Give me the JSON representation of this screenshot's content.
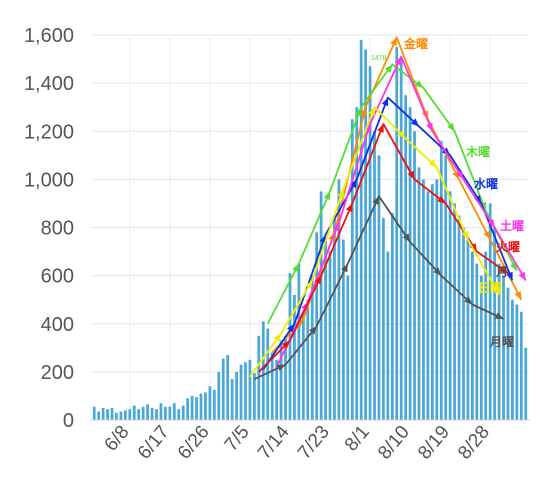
{
  "chart_data": {
    "type": "bar",
    "title": "",
    "xlabel": "",
    "ylabel": "",
    "ylim": [
      0,
      1600
    ],
    "yticks": [
      "0",
      "200",
      "400",
      "600",
      "800",
      "1,000",
      "1,200",
      "1,400",
      "1,600"
    ],
    "ytick_values": [
      0,
      200,
      400,
      600,
      800,
      1000,
      1200,
      1400,
      1600
    ],
    "xtick_labels": [
      "6/8",
      "6/17",
      "6/26",
      "7/5",
      "7/14",
      "7/23",
      "8/1",
      "8/10",
      "8/19",
      "8/28"
    ],
    "xtick_index": [
      8,
      17,
      26,
      35,
      44,
      53,
      62,
      71,
      80,
      89
    ],
    "grid": true,
    "bar_color": "#4aa8d8",
    "categories": [
      "5/31",
      "6/1",
      "6/2",
      "6/3",
      "6/4",
      "6/5",
      "6/6",
      "6/7",
      "6/8",
      "6/9",
      "6/10",
      "6/11",
      "6/12",
      "6/13",
      "6/14",
      "6/15",
      "6/16",
      "6/17",
      "6/18",
      "6/19",
      "6/20",
      "6/21",
      "6/22",
      "6/23",
      "6/24",
      "6/25",
      "6/26",
      "6/27",
      "6/28",
      "6/29",
      "6/30",
      "7/1",
      "7/2",
      "7/3",
      "7/4",
      "7/5",
      "7/6",
      "7/7",
      "7/8",
      "7/9",
      "7/10",
      "7/11",
      "7/12",
      "7/13",
      "7/14",
      "7/15",
      "7/16",
      "7/17",
      "7/18",
      "7/19",
      "7/20",
      "7/21",
      "7/22",
      "7/23",
      "7/24",
      "7/25",
      "7/26",
      "7/27",
      "7/28",
      "7/29",
      "7/30",
      "7/31",
      "8/1",
      "8/2",
      "8/3",
      "8/4",
      "8/5",
      "8/6",
      "8/7",
      "8/8",
      "8/9",
      "8/10",
      "8/11",
      "8/12",
      "8/13",
      "8/14",
      "8/15",
      "8/16",
      "8/17",
      "8/18",
      "8/19",
      "8/20",
      "8/21",
      "8/22",
      "8/23",
      "8/24",
      "8/25",
      "8/26",
      "8/27",
      "8/28",
      "8/29",
      "8/30",
      "8/31",
      "9/1",
      "9/2",
      "9/3",
      "9/4",
      "9/5"
    ],
    "values": [
      55,
      35,
      50,
      45,
      50,
      30,
      35,
      40,
      45,
      60,
      45,
      55,
      65,
      50,
      45,
      70,
      55,
      55,
      70,
      45,
      60,
      90,
      100,
      95,
      110,
      115,
      140,
      125,
      200,
      255,
      270,
      170,
      200,
      230,
      240,
      250,
      195,
      350,
      410,
      380,
      280,
      250,
      330,
      350,
      610,
      520,
      650,
      450,
      500,
      600,
      780,
      950,
      760,
      700,
      850,
      1000,
      750,
      600,
      1250,
      1300,
      1580,
      1540,
      1470,
      1200,
      1100,
      840,
      700,
      860,
      1550,
      1500,
      1350,
      1300,
      1200,
      1050,
      1000,
      950,
      980,
      1000,
      1160,
      1100,
      950,
      900,
      850,
      800,
      750,
      700,
      650,
      600,
      700,
      900,
      800,
      650,
      600,
      550,
      500,
      480,
      450,
      300
    ],
    "series": [
      {
        "name": "金曜",
        "color": "#ff8c00",
        "x": [
          "7/10",
          "7/17",
          "7/24",
          "7/31",
          "8/7",
          "8/14",
          "8/21",
          "8/28",
          "9/4"
        ],
        "values": [
          280,
          420,
          780,
          1300,
          1590,
          1250,
          1000,
          750,
          500
        ]
      },
      {
        "name": "木曜",
        "color": "#55dd33",
        "x": [
          "7/9",
          "7/16",
          "7/23",
          "7/30",
          "8/6",
          "8/13",
          "8/20",
          "8/27",
          "9/3"
        ],
        "values": [
          400,
          650,
          950,
          1300,
          1478,
          1380,
          1200,
          870,
          620
        ]
      },
      {
        "name": "水曜",
        "color": "#1133dd",
        "x": [
          "7/8",
          "7/15",
          "7/22",
          "7/29",
          "8/5",
          "8/12",
          "8/19",
          "8/26",
          "9/2"
        ],
        "values": [
          210,
          400,
          770,
          1000,
          1340,
          1220,
          1100,
          900,
          580
        ]
      },
      {
        "name": "土曜",
        "color": "#ff33ee",
        "x": [
          "7/11",
          "7/18",
          "7/25",
          "8/1",
          "8/8",
          "8/15",
          "8/22",
          "8/29",
          "9/5"
        ],
        "values": [
          220,
          490,
          820,
          1230,
          1510,
          1200,
          1000,
          800,
          580
        ]
      },
      {
        "name": "火曜",
        "color": "#ee1111",
        "x": [
          "7/7",
          "7/14",
          "7/21",
          "7/28",
          "8/4",
          "8/11",
          "8/18",
          "8/25",
          "9/1"
        ],
        "values": [
          200,
          330,
          600,
          900,
          1230,
          1000,
          900,
          700,
          610
        ]
      },
      {
        "name": "日曜",
        "color": "#eeee00",
        "x": [
          "7/5",
          "7/12",
          "7/19",
          "7/26",
          "8/2",
          "8/9",
          "8/16",
          "8/23",
          "8/30"
        ],
        "values": [
          180,
          360,
          580,
          960,
          1300,
          1170,
          1050,
          750,
          520
        ]
      },
      {
        "name": "月曜",
        "color": "#555555",
        "x": [
          "7/6",
          "7/13",
          "7/20",
          "7/27",
          "8/3",
          "8/10",
          "8/17",
          "8/24",
          "8/31"
        ],
        "values": [
          170,
          230,
          390,
          650,
          930,
          740,
          600,
          480,
          420
        ]
      }
    ],
    "series_end_labels": [
      {
        "text": "金曜",
        "color": "#ff8c00"
      },
      {
        "text": "木曜",
        "color": "#55dd33"
      },
      {
        "text": "水曜",
        "color": "#1133dd"
      },
      {
        "text": "土曜",
        "color": "#ff33ee"
      },
      {
        "text": "火曜",
        "color": "#ee1111"
      },
      {
        "text": "日曜",
        "color": "#eeee00"
      },
      {
        "text": "月",
        "color": "#555555"
      },
      {
        "text": "月曜",
        "color": "#555555"
      }
    ],
    "data_labels": [
      {
        "text": "1478",
        "color": "#55dd33"
      }
    ]
  }
}
